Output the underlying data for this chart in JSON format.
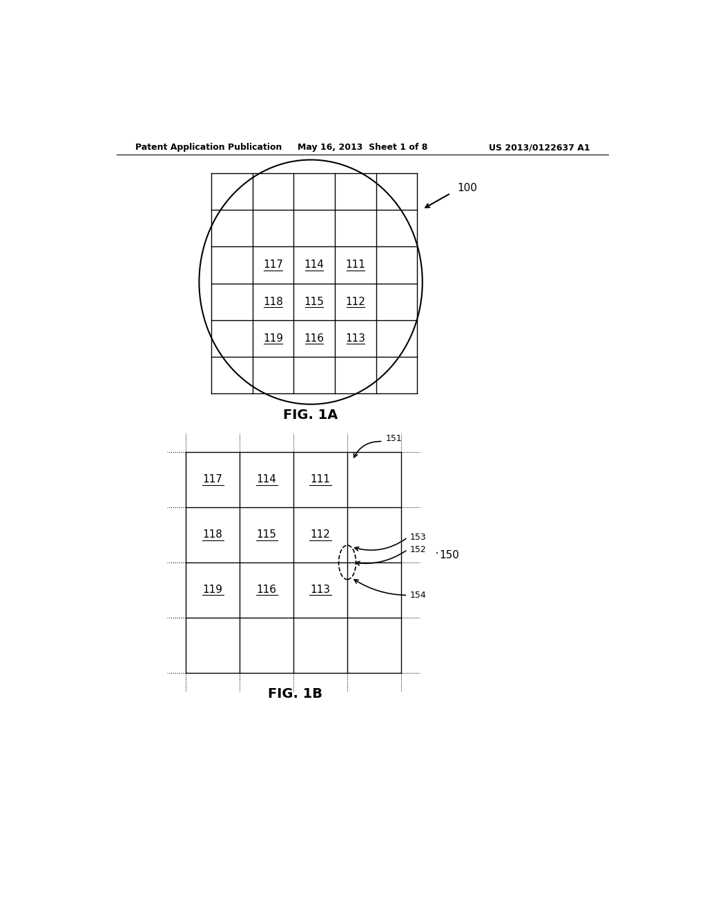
{
  "header_left": "Patent Application Publication",
  "header_mid": "May 16, 2013  Sheet 1 of 8",
  "header_right": "US 2013/0122637 A1",
  "fig1a_label": "FIG. 1A",
  "fig1b_label": "FIG. 1B",
  "label_100": "100",
  "label_151": "151",
  "label_150": "150",
  "label_152": "152",
  "label_153": "153",
  "label_154": "154",
  "grid_labels_fig1a": [
    [
      "117",
      "114",
      "111"
    ],
    [
      "118",
      "115",
      "112"
    ],
    [
      "119",
      "116",
      "113"
    ]
  ],
  "grid_labels_fig1b": [
    [
      "117",
      "114",
      "111"
    ],
    [
      "118",
      "115",
      "112"
    ],
    [
      "119",
      "116",
      "113"
    ]
  ],
  "bg_color": "#ffffff",
  "line_color": "#000000",
  "text_color": "#000000"
}
